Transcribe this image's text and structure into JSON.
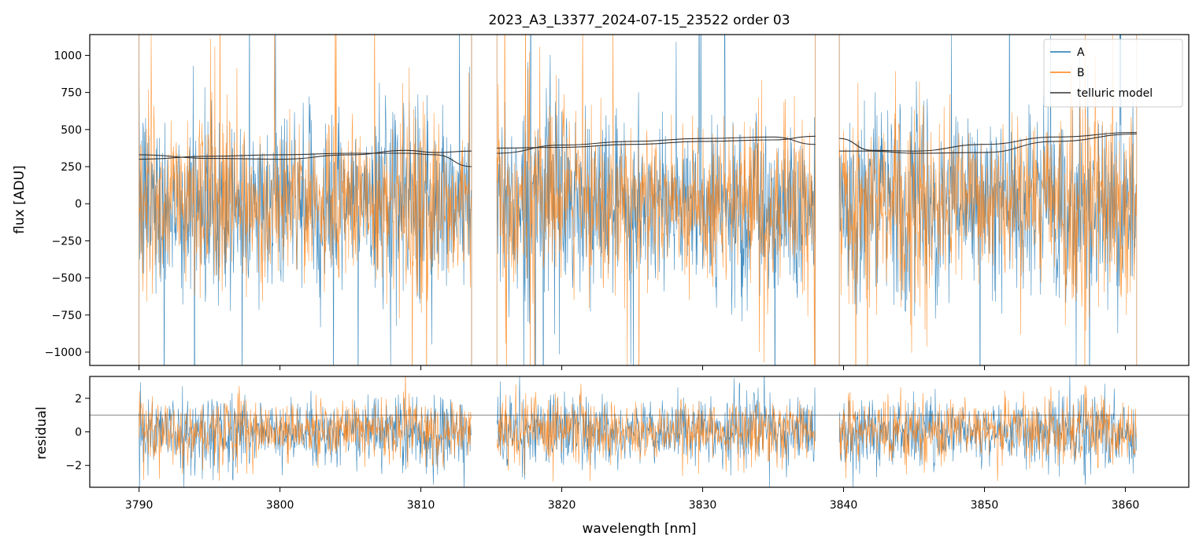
{
  "chart_data": [
    {
      "type": "line",
      "panel": "flux",
      "title": "2023_A3_L3377_2024-07-15_23522  order 03",
      "xlabel": "",
      "ylabel": "flux [ADU]",
      "xlim": [
        3786.5,
        3864.5
      ],
      "ylim": [
        -1090,
        1140
      ],
      "yticks": [
        -1000,
        -750,
        -500,
        -250,
        0,
        250,
        500,
        750,
        1000
      ],
      "ytick_labels": [
        "−1000",
        "−750",
        "−500",
        "−250",
        "0",
        "250",
        "500",
        "750",
        "1000"
      ],
      "grid": false,
      "legend_position": "upper-right",
      "segments": [
        [
          3790.0,
          3813.6
        ],
        [
          3815.4,
          3838.0
        ],
        [
          3839.7,
          3860.8
        ]
      ],
      "series": [
        {
          "name": "A",
          "color": "#1f77b4",
          "noise_sigma": 300,
          "spike_max": 1500,
          "center": 0
        },
        {
          "name": "B",
          "color": "#ff7f0e",
          "noise_sigma": 280,
          "spike_max": 1300,
          "center": 0
        },
        {
          "name": "telluric model",
          "color": "#333333",
          "curves": [
            {
              "x": [
                3790.0,
                3795.0,
                3800.0,
                3805.0,
                3809.0,
                3811.0,
                3813.6
              ],
              "y": [
                300,
                320,
                330,
                340,
                340,
                330,
                250
              ]
            },
            {
              "x": [
                3790.0,
                3795.0,
                3800.0,
                3805.0,
                3809.0,
                3811.0,
                3813.6
              ],
              "y": [
                330,
                305,
                300,
                330,
                360,
                345,
                355
              ]
            },
            {
              "x": [
                3815.4,
                3820.0,
                3825.0,
                3830.0,
                3835.0,
                3838.0
              ],
              "y": [
                340,
                395,
                420,
                440,
                450,
                400
              ]
            },
            {
              "x": [
                3815.4,
                3820.0,
                3825.0,
                3830.0,
                3835.0,
                3838.0
              ],
              "y": [
                375,
                380,
                400,
                420,
                430,
                455
              ]
            },
            {
              "x": [
                3839.7,
                3842.0,
                3845.0,
                3850.0,
                3855.0,
                3860.8
              ],
              "y": [
                440,
                360,
                355,
                400,
                450,
                480
              ]
            },
            {
              "x": [
                3839.7,
                3842.0,
                3845.0,
                3850.0,
                3855.0,
                3860.8
              ],
              "y": [
                355,
                355,
                340,
                345,
                420,
                470
              ]
            }
          ]
        }
      ]
    },
    {
      "type": "line",
      "panel": "residual",
      "xlabel": "wavelength [nm]",
      "ylabel": "residual",
      "xlim": [
        3786.5,
        3864.5
      ],
      "ylim": [
        -3.3,
        3.3
      ],
      "xticks": [
        3790,
        3800,
        3810,
        3820,
        3830,
        3840,
        3850,
        3860
      ],
      "xtick_labels": [
        "3790",
        "3800",
        "3810",
        "3820",
        "3830",
        "3840",
        "3850",
        "3860"
      ],
      "yticks": [
        -2,
        0,
        2
      ],
      "ytick_labels": [
        "−2",
        "0",
        "2"
      ],
      "reference_line": 1.0,
      "grid": false,
      "series": [
        {
          "name": "A",
          "color": "#1f77b4",
          "noise_sigma": 1.0,
          "center": 0.0
        },
        {
          "name": "B",
          "color": "#ff7f0e",
          "noise_sigma": 0.9,
          "center": 0.1
        }
      ]
    }
  ]
}
